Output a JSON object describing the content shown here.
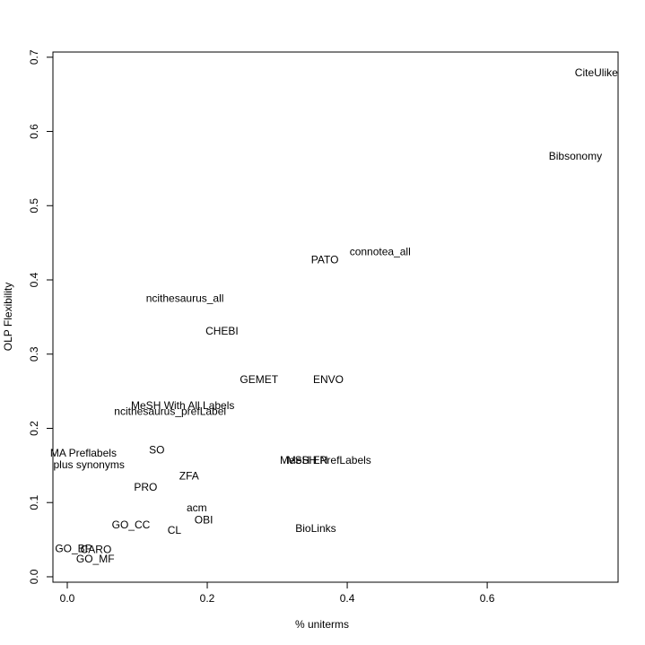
{
  "chart_data": {
    "type": "scatter",
    "xlabel": "% uniterms",
    "ylabel": "OLP Flexibility",
    "xlim": [
      -0.0205,
      0.787
    ],
    "ylim": [
      -0.0073,
      0.707
    ],
    "xticks": [
      {
        "value": 0,
        "label": "0.0"
      },
      0.2,
      0.4,
      0.6
    ],
    "yticks": [
      {
        "value": 0,
        "label": "0.0"
      },
      0.1,
      0.2,
      0.3,
      0.4,
      0.5,
      0.6,
      0.7
    ],
    "series": [
      {
        "color": "#000000",
        "labels": [
          "CiteUlike",
          "Bibsonomy",
          "connotea_all",
          "PATO",
          "ncithesaurus_all",
          "CHEBI",
          "GEMET",
          "ENVO",
          "MeSH With All Labels",
          "ncithesaurus_prefLabel",
          "MA Preflabels",
          "plus synonyms",
          "SO",
          "MeSH EN",
          "MeSH PrefLabels",
          "ZFA",
          "PRO",
          "acm",
          "OBI",
          "GO_CC",
          "CL",
          "BioLinks",
          "GO_BP",
          "CARO",
          "GO_MF"
        ],
        "x": [
          0.756,
          0.726,
          0.447,
          0.368,
          0.168,
          0.221,
          0.274,
          0.373,
          0.165,
          0.147,
          0.023,
          0.031,
          0.128,
          0.338,
          0.374,
          0.174,
          0.112,
          0.185,
          0.195,
          0.091,
          0.153,
          0.355,
          0.009,
          0.041,
          0.04
        ],
        "values": [
          0.678,
          0.566,
          0.437,
          0.426,
          0.374,
          0.33,
          0.265,
          0.265,
          0.23,
          0.222,
          0.166,
          0.15,
          0.17,
          0.156,
          0.156,
          0.135,
          0.12,
          0.092,
          0.076,
          0.069,
          0.062,
          0.064,
          0.037,
          0.036,
          0.023
        ]
      }
    ]
  }
}
